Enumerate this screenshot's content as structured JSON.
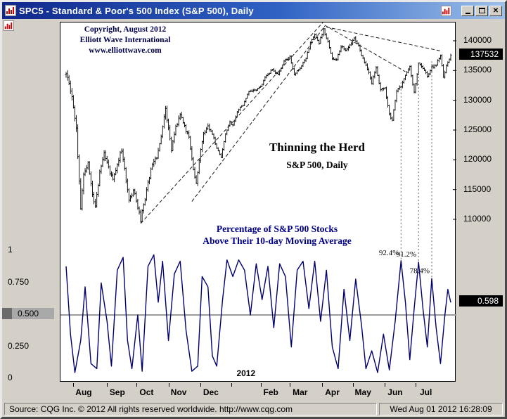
{
  "window": {
    "title": "SPC5 - Standard & Poor's 500 Index (S&P 500), Daily",
    "close_glyph": "✕"
  },
  "annotations": {
    "copyright_line1": "Copyright, August 2012",
    "copyright_line2": "Elliott Wave International",
    "copyright_line3": "www.elliottwave.com",
    "headline": "Thinning the Herd",
    "subhead": "S&P 500, Daily",
    "breadth_line1": "Percentage of S&P 500 Stocks",
    "breadth_line2": "Above Their 10-day Moving Average"
  },
  "status_bar": {
    "source": "Source: CQG Inc. © 2012 All rights reserved worldwide. http://www.cqg.com",
    "datetime": "Wed Aug 01 2012 16:28:09"
  },
  "colors": {
    "bars": "#000000",
    "oscillator": "#00006e",
    "navy_text": "#00008B",
    "midline_gray": "#9b9b9b",
    "current_box_bg": "#000000",
    "current_box_text": "#ffffff",
    "icon_red": "#cc0000",
    "titlebar_left": "#10288c",
    "titlebar_right": "#9cc0ea",
    "panel_bg": "#d4d0c8"
  },
  "chart_data": {
    "type": "ohlc+line",
    "title": "S&P 500 Daily bars (upper panel) with percentage of S&P 500 stocks above their 10-day moving average (lower panel)",
    "x_range_days": 264,
    "price_axis": {
      "note": "prices are index x100, e.g. 137532 = 1375.32",
      "min": 110000,
      "max": 140000,
      "ticks": [
        140000,
        135000,
        130000,
        125000,
        120000,
        115000,
        110000
      ]
    },
    "osc_axis": {
      "min": 0,
      "max": 1,
      "ticks": [
        {
          "label": "1",
          "value": 1
        },
        {
          "label": "0.750",
          "value": 0.75
        },
        {
          "label": "0.500",
          "value": 0.5,
          "marker": true
        },
        {
          "label": "0.250",
          "value": 0.25
        },
        {
          "label": "0",
          "value": 0
        }
      ]
    },
    "last_price": 137532,
    "last_price_label": "137532",
    "last_osc": 0.598,
    "last_osc_label": "0.598",
    "midline": 0.5,
    "price_close_anchors": [
      [
        0,
        134400
      ],
      [
        4,
        130800
      ],
      [
        7,
        125000
      ],
      [
        10,
        111900
      ],
      [
        12,
        117200
      ],
      [
        15,
        119700
      ],
      [
        18,
        114000
      ],
      [
        20,
        112400
      ],
      [
        23,
        117700
      ],
      [
        26,
        121000
      ],
      [
        29,
        118600
      ],
      [
        32,
        116500
      ],
      [
        35,
        119300
      ],
      [
        38,
        121600
      ],
      [
        41,
        116600
      ],
      [
        43,
        112900
      ],
      [
        46,
        115100
      ],
      [
        48,
        113100
      ],
      [
        51,
        109900
      ],
      [
        53,
        112400
      ],
      [
        56,
        116000
      ],
      [
        59,
        119500
      ],
      [
        62,
        120300
      ],
      [
        65,
        123800
      ],
      [
        68,
        128500
      ],
      [
        70,
        125300
      ],
      [
        72,
        121800
      ],
      [
        75,
        125600
      ],
      [
        78,
        127500
      ],
      [
        81,
        125700
      ],
      [
        84,
        123600
      ],
      [
        87,
        118600
      ],
      [
        89,
        115800
      ],
      [
        92,
        121800
      ],
      [
        94,
        124400
      ],
      [
        97,
        125400
      ],
      [
        100,
        124400
      ],
      [
        103,
        121900
      ],
      [
        106,
        120500
      ],
      [
        109,
        124300
      ],
      [
        112,
        126300
      ],
      [
        114,
        125800
      ],
      [
        117,
        128100
      ],
      [
        121,
        129300
      ],
      [
        125,
        131500
      ],
      [
        129,
        131600
      ],
      [
        133,
        132400
      ],
      [
        137,
        134200
      ],
      [
        141,
        135100
      ],
      [
        145,
        134300
      ],
      [
        149,
        136600
      ],
      [
        153,
        137400
      ],
      [
        156,
        134300
      ],
      [
        160,
        135400
      ],
      [
        164,
        137100
      ],
      [
        167,
        139600
      ],
      [
        170,
        140900
      ],
      [
        173,
        139700
      ],
      [
        176,
        141900
      ],
      [
        179,
        139800
      ],
      [
        182,
        136900
      ],
      [
        185,
        137000
      ],
      [
        188,
        139000
      ],
      [
        191,
        138500
      ],
      [
        194,
        139100
      ],
      [
        197,
        140300
      ],
      [
        200,
        139100
      ],
      [
        203,
        136900
      ],
      [
        206,
        135400
      ],
      [
        209,
        133000
      ],
      [
        212,
        135400
      ],
      [
        215,
        131800
      ],
      [
        218,
        132000
      ],
      [
        221,
        127800
      ],
      [
        223,
        126600
      ],
      [
        226,
        131500
      ],
      [
        229,
        132400
      ],
      [
        232,
        134400
      ],
      [
        235,
        135600
      ],
      [
        238,
        131300
      ],
      [
        241,
        136200
      ],
      [
        244,
        135400
      ],
      [
        247,
        134100
      ],
      [
        250,
        135600
      ],
      [
        253,
        136000
      ],
      [
        256,
        137600
      ],
      [
        258,
        133800
      ],
      [
        260,
        135900
      ],
      [
        263,
        137532
      ]
    ],
    "osc_anchors": [
      [
        0,
        0.88
      ],
      [
        3,
        0.35
      ],
      [
        6,
        0.05
      ],
      [
        10,
        0.3
      ],
      [
        13,
        0.72
      ],
      [
        17,
        0.12
      ],
      [
        21,
        0.08
      ],
      [
        24,
        0.75
      ],
      [
        28,
        0.45
      ],
      [
        31,
        0.1
      ],
      [
        35,
        0.85
      ],
      [
        39,
        0.95
      ],
      [
        42,
        0.3
      ],
      [
        45,
        0.08
      ],
      [
        49,
        0.5
      ],
      [
        52,
        0.06
      ],
      [
        56,
        0.88
      ],
      [
        60,
        0.97
      ],
      [
        63,
        0.6
      ],
      [
        66,
        0.92
      ],
      [
        70,
        0.3
      ],
      [
        74,
        0.82
      ],
      [
        78,
        0.92
      ],
      [
        82,
        0.38
      ],
      [
        86,
        0.06
      ],
      [
        90,
        0.1
      ],
      [
        93,
        0.8
      ],
      [
        97,
        0.72
      ],
      [
        100,
        0.18
      ],
      [
        103,
        0.1
      ],
      [
        107,
        0.62
      ],
      [
        110,
        0.93
      ],
      [
        114,
        0.8
      ],
      [
        118,
        0.93
      ],
      [
        122,
        0.85
      ],
      [
        126,
        0.5
      ],
      [
        130,
        0.9
      ],
      [
        134,
        0.62
      ],
      [
        138,
        0.88
      ],
      [
        142,
        0.4
      ],
      [
        146,
        0.9
      ],
      [
        150,
        0.8
      ],
      [
        154,
        0.25
      ],
      [
        158,
        0.85
      ],
      [
        162,
        0.92
      ],
      [
        166,
        0.55
      ],
      [
        170,
        0.92
      ],
      [
        174,
        0.45
      ],
      [
        178,
        0.85
      ],
      [
        182,
        0.25
      ],
      [
        186,
        0.08
      ],
      [
        190,
        0.7
      ],
      [
        194,
        0.3
      ],
      [
        198,
        0.78
      ],
      [
        202,
        0.42
      ],
      [
        205,
        0.08
      ],
      [
        209,
        0.22
      ],
      [
        213,
        0.05
      ],
      [
        217,
        0.35
      ],
      [
        221,
        0.07
      ],
      [
        225,
        0.45
      ],
      [
        229,
        0.924
      ],
      [
        232,
        0.6
      ],
      [
        235,
        0.15
      ],
      [
        238,
        0.55
      ],
      [
        241,
        0.912
      ],
      [
        244,
        0.55
      ],
      [
        247,
        0.25
      ],
      [
        250,
        0.784
      ],
      [
        253,
        0.4
      ],
      [
        256,
        0.12
      ],
      [
        259,
        0.5
      ],
      [
        261,
        0.7
      ],
      [
        263,
        0.598
      ]
    ],
    "volatility_windows": [
      {
        "from": 0,
        "to": 14,
        "f": 2.1
      },
      {
        "from": 14,
        "to": 100,
        "f": 1.55
      },
      {
        "from": 100,
        "to": 175,
        "f": 0.75
      },
      {
        "from": 175,
        "to": 264,
        "f": 1.0
      }
    ],
    "month_ticks": [
      {
        "label": "Aug",
        "day": 5
      },
      {
        "label": "Sep",
        "day": 28
      },
      {
        "label": "Oct",
        "day": 48
      },
      {
        "label": "Nov",
        "day": 70
      },
      {
        "label": "Dec",
        "day": 92
      },
      {
        "label": null,
        "day": 113
      },
      {
        "label": "Feb",
        "day": 133
      },
      {
        "label": "Mar",
        "day": 153
      },
      {
        "label": "Apr",
        "day": 175
      },
      {
        "label": "May",
        "day": 196
      },
      {
        "label": "Jun",
        "day": 218
      },
      {
        "label": "Jul",
        "day": 239
      }
    ],
    "year_label": {
      "text": "2012",
      "day": 123
    },
    "trendlines": [
      {
        "d1": 51,
        "p1": 109300,
        "d2": 176,
        "p2": 143200
      },
      {
        "d1": 86,
        "p1": 113000,
        "d2": 177,
        "p2": 142500
      },
      {
        "d1": 177,
        "p1": 142600,
        "d2": 232,
        "p2": 134800
      },
      {
        "d1": 178,
        "p1": 142300,
        "d2": 256,
        "p2": 138300
      }
    ],
    "peak_markers": [
      {
        "day": 229,
        "value": 0.924,
        "label": "92.4%",
        "price": 133600
      },
      {
        "day": 241,
        "value": 0.912,
        "label": "91.2%",
        "price": 136200
      },
      {
        "day": 250,
        "value": 0.784,
        "label": "78.4%",
        "price": 137400
      }
    ]
  }
}
